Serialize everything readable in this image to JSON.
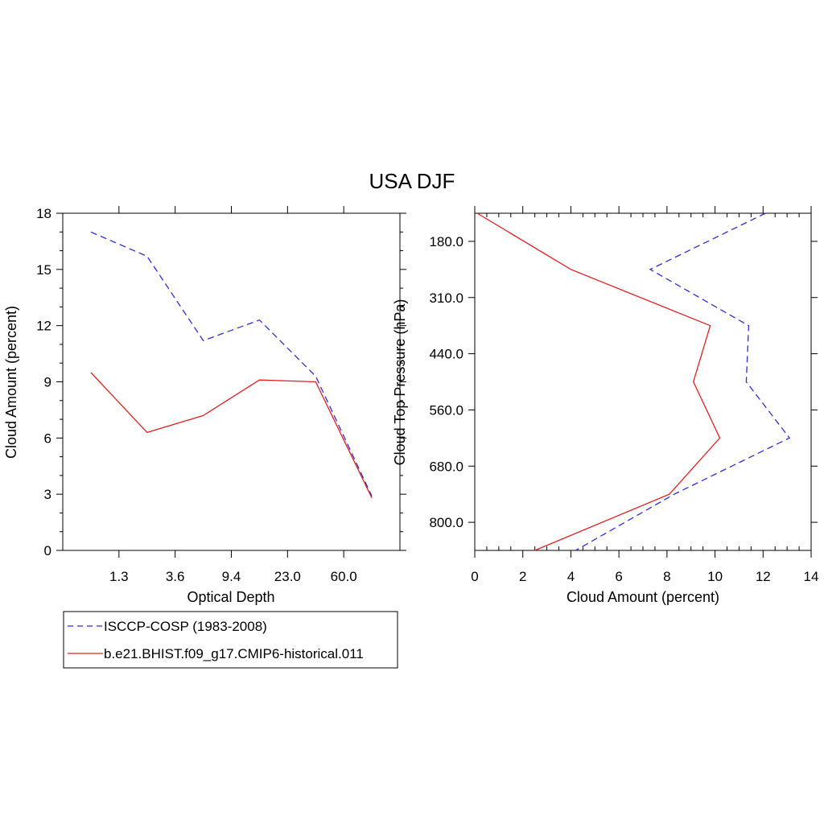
{
  "title": "USA DJF",
  "legend": {
    "placement": "bottom-left",
    "entries": [
      "ISCCP-COSP (1983-2008)",
      "b.e21.BHIST.f09_g17.CMIP6-historical.011"
    ]
  },
  "colors": {
    "obs": "#2f2fd8",
    "model": "#e02020",
    "axis": "#000000"
  },
  "chart_data": [
    {
      "type": "line",
      "panel": "left",
      "xlabel": "Optical Depth",
      "ylabel": "Cloud Amount (percent)",
      "x_tick_labels": [
        "1.3",
        "3.6",
        "9.4",
        "23.0",
        "60.0"
      ],
      "y_ticks": [
        0,
        3,
        6,
        9,
        12,
        15,
        18
      ],
      "ylim": [
        0,
        18
      ],
      "x": [
        0,
        1,
        2,
        3,
        4,
        5
      ],
      "series": [
        {
          "name": "ISCCP-COSP (1983-2008)",
          "style": "dashed",
          "values": [
            17.0,
            15.7,
            11.2,
            12.3,
            9.3,
            2.9
          ]
        },
        {
          "name": "b.e21.BHIST.f09_g17.CMIP6-historical.011",
          "style": "solid",
          "values": [
            9.5,
            6.3,
            7.2,
            9.1,
            9.0,
            2.8
          ]
        }
      ]
    },
    {
      "type": "line",
      "panel": "right",
      "xlabel": "Cloud Amount (percent)",
      "ylabel": "Cloud Top Pressure (hPa)",
      "x_ticks": [
        0,
        2,
        4,
        6,
        8,
        10,
        12,
        14
      ],
      "xlim": [
        0,
        14
      ],
      "y_tick_labels": [
        "180.0",
        "310.0",
        "440.0",
        "560.0",
        "680.0",
        "800.0"
      ],
      "y": [
        0,
        1,
        2,
        3,
        4,
        5,
        6
      ],
      "series": [
        {
          "name": "ISCCP-COSP (1983-2008)",
          "style": "dashed",
          "values": [
            12.1,
            7.3,
            11.4,
            11.3,
            13.1,
            8.3,
            4.2
          ]
        },
        {
          "name": "b.e21.BHIST.f09_g17.CMIP6-historical.011",
          "style": "solid",
          "values": [
            0.1,
            4.0,
            9.8,
            9.1,
            10.2,
            8.1,
            2.5
          ]
        }
      ]
    }
  ]
}
